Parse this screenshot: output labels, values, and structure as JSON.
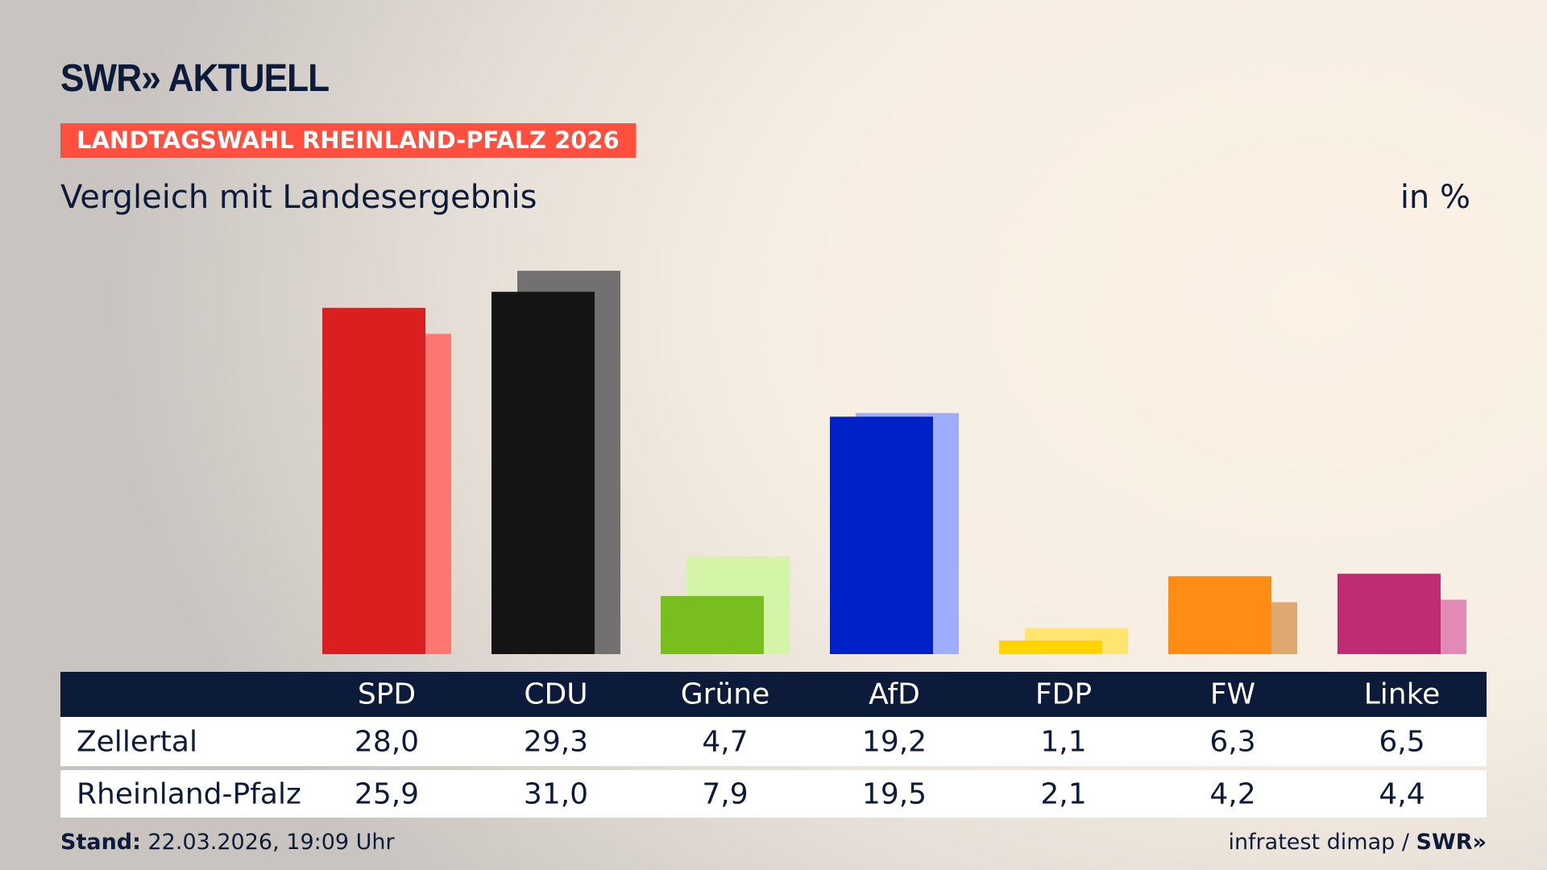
{
  "header": {
    "logo": "SWR» AKTUELL",
    "banner": "LANDTAGSWAHL RHEINLAND-PFALZ 2026",
    "subtitle": "Vergleich mit Landesergebnis",
    "unit": "in %"
  },
  "chart_data": {
    "type": "bar",
    "title": "Vergleich mit Landesergebnis",
    "ylabel": "in %",
    "ylim": [
      0,
      32
    ],
    "categories": [
      "SPD",
      "CDU",
      "Grüne",
      "AfD",
      "FDP",
      "FW",
      "Linke"
    ],
    "series": [
      {
        "name": "Zellertal",
        "values": [
          28.0,
          29.3,
          4.7,
          19.2,
          1.1,
          6.3,
          6.5
        ],
        "labels": [
          "28,0",
          "29,3",
          "4,7",
          "19,2",
          "1,1",
          "6,3",
          "6,5"
        ]
      },
      {
        "name": "Rheinland-Pfalz",
        "values": [
          25.9,
          31.0,
          7.9,
          19.5,
          2.1,
          4.2,
          4.4
        ],
        "labels": [
          "25,9",
          "31,0",
          "7,9",
          "19,5",
          "2,1",
          "4,2",
          "4,4"
        ]
      }
    ],
    "colors": [
      "#d91f1f",
      "#141414",
      "#78be1e",
      "#0021c8",
      "#ffd400",
      "#ff8c14",
      "#be2c74"
    ],
    "colors_light": [
      "#ff7570",
      "#727070",
      "#d4f5a8",
      "#9fadff",
      "#ffe570",
      "#e0a871",
      "#e08ab5"
    ]
  },
  "footer": {
    "stand_label": "Stand:",
    "stand_value": " 22.03.2026, 19:09 Uhr",
    "source": "infratest dimap / ",
    "source_logo": "SWR»"
  }
}
